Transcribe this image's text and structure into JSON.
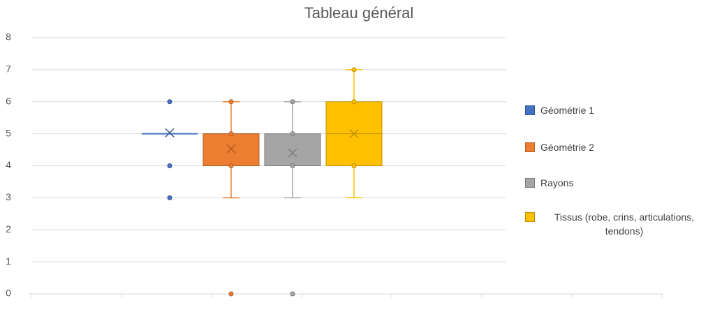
{
  "chart_data": {
    "type": "box",
    "title": "Tableau général",
    "ylim": [
      0,
      8
    ],
    "yticks": [
      0,
      1,
      2,
      3,
      4,
      5,
      6,
      7,
      8
    ],
    "grid": true,
    "series": [
      {
        "name": "Géométrie 1",
        "color": "#4472c4",
        "min": 5,
        "q1": 5,
        "median": 5,
        "q3": 5,
        "max": 5,
        "mean": 5.03,
        "points": [
          3,
          4,
          6
        ]
      },
      {
        "name": "Géométrie 2",
        "color": "#ed7d31",
        "min": 3,
        "q1": 4,
        "median": 5,
        "q3": 5,
        "max": 6,
        "mean": 4.53,
        "points": [
          0,
          4,
          5,
          6
        ]
      },
      {
        "name": "Rayons",
        "color": "#a5a5a5",
        "min": 3,
        "q1": 4,
        "median": 4,
        "q3": 5,
        "max": 6,
        "mean": 4.4,
        "points": [
          0,
          4,
          5,
          6
        ]
      },
      {
        "name": "Tissus (robe, crins, articulations, tendons)",
        "color": "#ffc000",
        "min": 3,
        "q1": 4,
        "median": 5,
        "q3": 6,
        "max": 7,
        "mean": 5,
        "points": [
          4,
          6,
          7
        ]
      }
    ]
  }
}
